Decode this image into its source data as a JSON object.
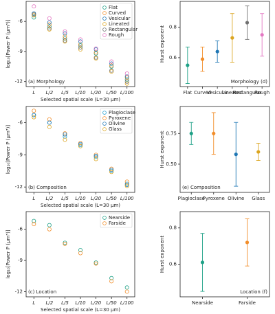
{
  "chart_data": [
    {
      "type": "scatter",
      "panel_label": "(a) Morphology",
      "xlabel": "Selected spatial scale (L=30 μm)",
      "ylabel": "log₁₀[Power P (μm³)]",
      "categories": [
        "L",
        "L/2",
        "L/5",
        "L/10",
        "L/20",
        "L/50",
        "L/100"
      ],
      "ylim": [
        -12.5,
        -4
      ],
      "yticks": [
        -6,
        -9,
        -12
      ],
      "legend": "upper right",
      "series": [
        {
          "name": "Flat",
          "color": "#1fa187",
          "values": [
            -5.6,
            -6.5,
            -7.7,
            -8.4,
            -9.2,
            -10.5,
            -11.8
          ]
        },
        {
          "name": "Curved",
          "color": "#f28e2b",
          "values": [
            -5.3,
            -6.3,
            -7.5,
            -8.3,
            -9.1,
            -10.4,
            -11.6
          ]
        },
        {
          "name": "Vesicular",
          "color": "#1f77b4",
          "values": [
            -5.2,
            -6.1,
            -7.2,
            -8.0,
            -8.8,
            -10.2,
            -11.5
          ]
        },
        {
          "name": "Lineated",
          "color": "#dba520",
          "values": [
            -5.4,
            -6.8,
            -8.0,
            -8.8,
            -9.7,
            -11.0,
            -12.2
          ]
        },
        {
          "name": "Rectangular",
          "color": "#707070",
          "values": [
            -5.3,
            -6.7,
            -7.9,
            -8.6,
            -9.6,
            -10.9,
            -12.0
          ]
        },
        {
          "name": "Rough",
          "color": "#e377c2",
          "values": [
            -4.5,
            -5.7,
            -7.0,
            -7.8,
            -8.7,
            -10.0,
            -11.2
          ]
        }
      ]
    },
    {
      "type": "errorbar",
      "panel_label": "Morphology (d)",
      "ylabel": "Hurst exponent",
      "categories": [
        "Flat",
        "Curved",
        "Vesicular",
        "Lineated",
        "Rectangular",
        "Rough"
      ],
      "colors": [
        "#1fa187",
        "#f28e2b",
        "#1f77b4",
        "#dba520",
        "#707070",
        "#e377c2"
      ],
      "values": [
        0.55,
        0.59,
        0.64,
        0.73,
        0.83,
        0.75
      ],
      "errors": [
        0.12,
        0.08,
        0.07,
        0.16,
        0.11,
        0.14
      ],
      "ylim": [
        0.41,
        0.97
      ],
      "yticks": [
        0.6,
        0.8
      ]
    },
    {
      "type": "scatter",
      "panel_label": "(b) Composition",
      "xlabel": "Selected spatial scale (L=30 μm)",
      "ylabel": "log₁₀[Power P (μm³)]",
      "categories": [
        "L",
        "L/2",
        "L/5",
        "L/10",
        "L/20",
        "L/50",
        "L/100"
      ],
      "ylim": [
        -12.5,
        -4.5
      ],
      "yticks": [
        -6,
        -9,
        -12
      ],
      "legend": "upper right",
      "series": [
        {
          "name": "Plagioclase",
          "color": "#1f9fd0",
          "values": [
            -5.3,
            -6.0,
            -7.3,
            -8.1,
            -9.2,
            -10.5,
            -11.7
          ]
        },
        {
          "name": "Pyroxene",
          "color": "#f28e2b",
          "values": [
            -4.9,
            -5.7,
            -7.0,
            -7.9,
            -9.0,
            -10.3,
            -11.5
          ]
        },
        {
          "name": "Olivine",
          "color": "#1f77b4",
          "values": [
            -5.3,
            -6.0,
            -7.1,
            -8.0,
            -9.1,
            -10.4,
            -11.8
          ]
        },
        {
          "name": "Glass",
          "color": "#dba520",
          "values": [
            -5.5,
            -6.4,
            -7.6,
            -8.2,
            -9.4,
            -10.6,
            -11.9
          ]
        }
      ]
    },
    {
      "type": "errorbar",
      "panel_label": "(e) Composition",
      "ylabel": "Hurst exponent",
      "categories": [
        "Plagioclase",
        "Pyroxene",
        "Olivine",
        "Glass"
      ],
      "colors": [
        "#1fa187",
        "#f28e2b",
        "#1f77b4",
        "#dba520"
      ],
      "values": [
        0.75,
        0.75,
        0.58,
        0.6
      ],
      "errors": [
        0.09,
        0.17,
        0.26,
        0.07
      ],
      "ylim": [
        0.27,
        0.97
      ],
      "yticks": [
        {
          "value": 0.5,
          "label": "0.50"
        },
        0.75
      ]
    },
    {
      "type": "scatter",
      "panel_label": "(c) Location",
      "xlabel": "Selected spatial scale (L=30 μm)",
      "ylabel": "log₁₀[Power P (μm³)]",
      "categories": [
        "L",
        "L/2",
        "L/5",
        "L/10",
        "L/20",
        "L/50",
        "L/100"
      ],
      "ylim": [
        -12.5,
        -4.3
      ],
      "yticks": [
        -6,
        -9,
        -12
      ],
      "legend": "upper right",
      "series": [
        {
          "name": "Nearside",
          "color": "#1fa187",
          "values": [
            -5.2,
            -5.6,
            -7.3,
            -8.0,
            -9.2,
            -10.7,
            -11.6
          ]
        },
        {
          "name": "Farside",
          "color": "#f28e2b",
          "values": [
            -5.5,
            -6.0,
            -7.4,
            -8.3,
            -9.3,
            -11.0,
            -12.0
          ]
        }
      ]
    },
    {
      "type": "errorbar",
      "panel_label": "Location (f)",
      "ylabel": "Hurst exponent",
      "categories": [
        "Nearside",
        "Farside"
      ],
      "colors": [
        "#1fa187",
        "#f28e2b"
      ],
      "values": [
        0.61,
        0.72
      ],
      "errors": [
        0.16,
        0.13
      ],
      "ylim": [
        0.42,
        0.89
      ],
      "yticks": [
        0.6,
        0.8
      ]
    }
  ]
}
